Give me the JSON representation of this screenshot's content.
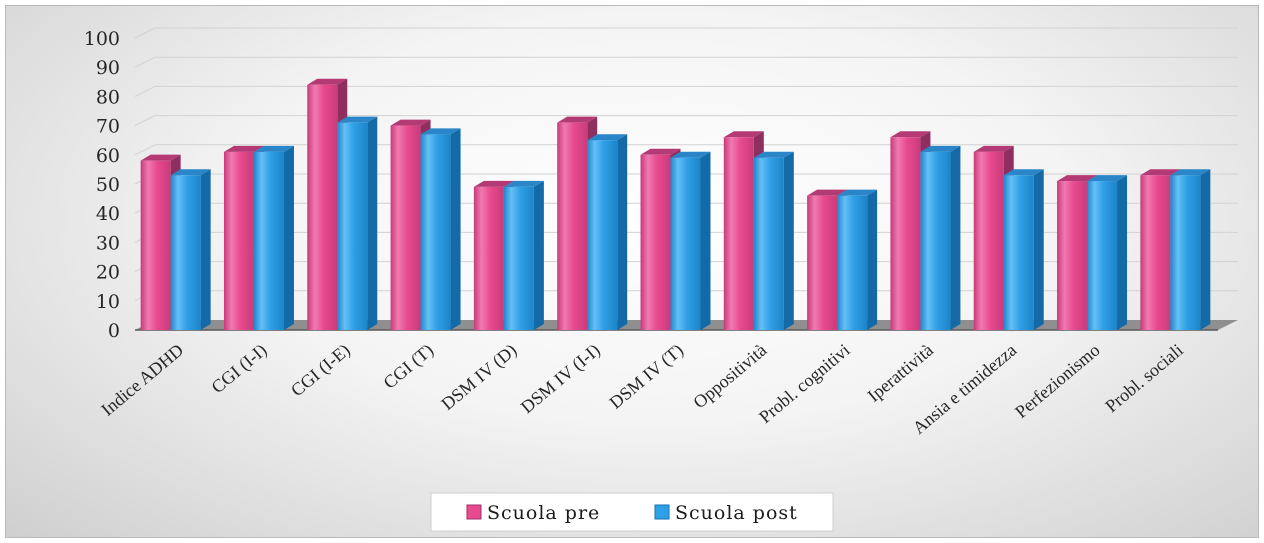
{
  "chart_data": {
    "type": "bar",
    "style": "3d-clustered-column",
    "categories": [
      "Indice ADHD",
      "CGI (I-I)",
      "CGI (I-E)",
      "CGI (T)",
      "DSM IV (D)",
      "DSM IV (I-I)",
      "DSM IV (T)",
      "Oppositività",
      "Probl. cognitivi",
      "Iperattività",
      "Ansia e timidezza",
      "Perfezionismo",
      "Probl. sociali"
    ],
    "series": [
      {
        "name": "Scuola pre",
        "color": "#e84a8e",
        "values": [
          58,
          61,
          84,
          70,
          49,
          71,
          60,
          66,
          46,
          66,
          61,
          51,
          53
        ]
      },
      {
        "name": "Scuola post",
        "color": "#2f9fe6",
        "values": [
          53,
          61,
          71,
          67,
          49,
          65,
          59,
          59,
          46,
          61,
          53,
          51,
          53
        ]
      }
    ],
    "yticks": [
      "0",
      "10",
      "20",
      "30",
      "40",
      "50",
      "60",
      "70",
      "80",
      "90",
      "100"
    ],
    "ylim": [
      0,
      100
    ],
    "title": "",
    "xlabel": "",
    "ylabel": "",
    "grid": true,
    "legend_position": "bottom"
  }
}
